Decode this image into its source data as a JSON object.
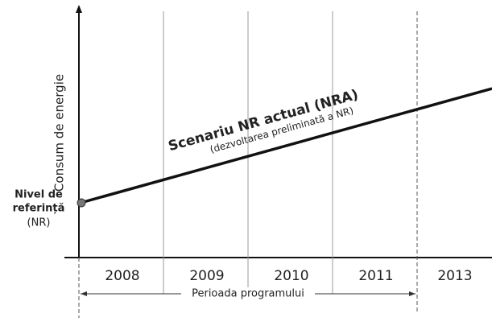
{
  "y_axis_label": "Consum de energie",
  "periods": [
    "2008",
    "2009",
    "2010",
    "2011",
    "2013"
  ],
  "line_title": "Scenariu NR actual (NRA)",
  "line_subtitle": "(dezvoltarea preliminată a NR)",
  "baseline_label": [
    "Nivel de",
    "referință",
    "(NR)"
  ],
  "program_period_label": "Perioada programului"
}
